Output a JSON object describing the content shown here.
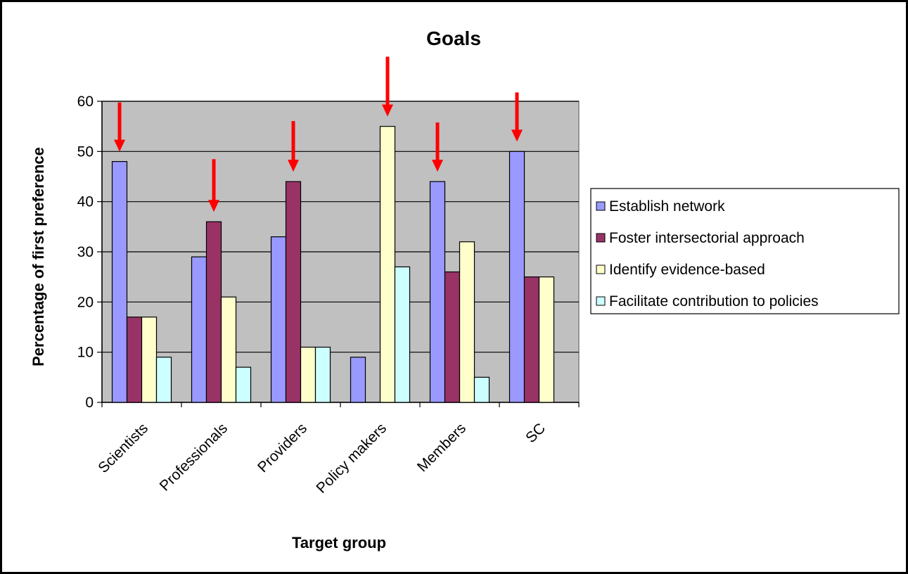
{
  "chart_data": {
    "type": "bar",
    "title": "Goals",
    "xlabel": "Target group",
    "ylabel": "Percentage of first preference",
    "ylim": [
      0,
      60
    ],
    "yticks": [
      0,
      10,
      20,
      30,
      40,
      50,
      60
    ],
    "grid": true,
    "legend_position": "right",
    "categories": [
      "Scientists",
      "Professionals",
      "Providers",
      "Policy makers",
      "Members",
      "SC"
    ],
    "series": [
      {
        "name": "Establish network",
        "color": "#9999ff",
        "values": [
          48,
          29,
          33,
          9,
          44,
          50
        ]
      },
      {
        "name": "Foster intersectorial approach",
        "color": "#993366",
        "values": [
          17,
          36,
          44,
          0,
          26,
          25
        ]
      },
      {
        "name": "Identify evidence-based",
        "color": "#ffffcc",
        "values": [
          17,
          21,
          11,
          55,
          32,
          25
        ]
      },
      {
        "name": "Facilitate contribution to policies",
        "color": "#ccffff",
        "values": [
          9,
          7,
          11,
          27,
          5,
          0
        ]
      }
    ],
    "annotations": {
      "type": "arrow",
      "color": "#ff0000",
      "points_to": [
        {
          "category": "Scientists",
          "series": "Establish network"
        },
        {
          "category": "Professionals",
          "series": "Foster intersectorial approach"
        },
        {
          "category": "Providers",
          "series": "Foster intersectorial approach"
        },
        {
          "category": "Policy makers",
          "series": "Identify evidence-based"
        },
        {
          "category": "Members",
          "series": "Establish network"
        },
        {
          "category": "SC",
          "series": "Establish network"
        }
      ]
    },
    "plot_background": "#c0c0c0"
  }
}
